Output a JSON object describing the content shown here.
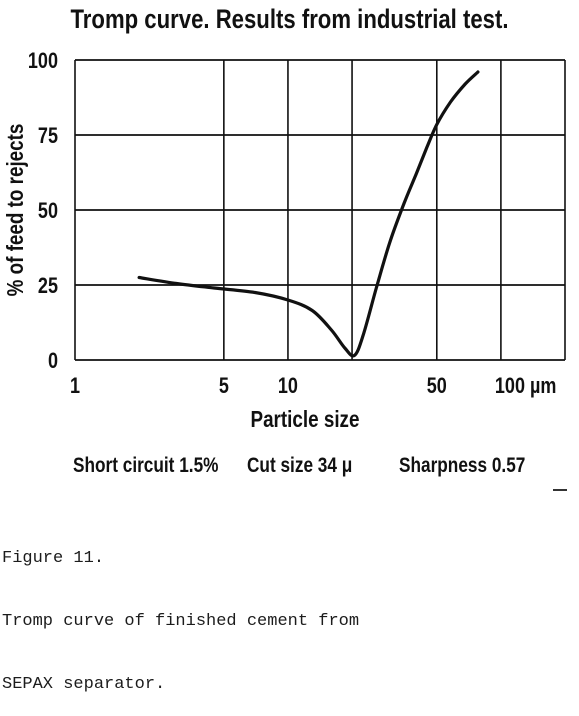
{
  "chart_data": {
    "type": "line",
    "title": "Tromp curve. Results from industrial test.",
    "xlabel": "Particle size",
    "ylabel": "% of feed to rejects",
    "xscale": "log",
    "xlim": [
      1,
      200
    ],
    "ylim": [
      0,
      100
    ],
    "x_ticks": [
      {
        "value": 1,
        "label": "1"
      },
      {
        "value": 5,
        "label": "5"
      },
      {
        "value": 10,
        "label": "10"
      },
      {
        "value": 50,
        "label": "50"
      },
      {
        "value": 100,
        "label": "100 µm"
      }
    ],
    "y_ticks": [
      {
        "value": 0,
        "label": "0"
      },
      {
        "value": 25,
        "label": "25"
      },
      {
        "value": 50,
        "label": "50"
      },
      {
        "value": 75,
        "label": "75"
      },
      {
        "value": 100,
        "label": "100"
      }
    ],
    "x_gridlines": [
      1,
      5,
      10,
      20,
      50,
      100,
      200
    ],
    "y_gridlines": [
      0,
      25,
      50,
      75,
      100
    ],
    "grid": true,
    "series": [
      {
        "x": [
          2.0,
          3.0,
          4.5,
          7.0,
          10.0,
          13.0,
          16.0,
          18.5,
          20.5,
          22.5,
          26.0,
          30.0,
          35.0,
          40.0,
          45.0,
          50.0,
          58.0,
          68.0,
          78.0
        ],
        "y": [
          27.5,
          25.5,
          24.0,
          22.5,
          20.0,
          16.5,
          10.0,
          4.0,
          1.5,
          8.0,
          24.0,
          39.0,
          52.0,
          62.0,
          71.0,
          78.5,
          86.0,
          92.0,
          96.0
        ],
        "color": "#111111"
      }
    ]
  },
  "stats": {
    "short_circuit": "Short circuit 1.5%",
    "cut_size": "Cut size 34 μ",
    "sharpness": "Sharpness 0.57"
  },
  "caption": {
    "line1": "Figure 11.",
    "line2": "Tromp curve of finished cement from",
    "line3": "SEPAX separator."
  }
}
